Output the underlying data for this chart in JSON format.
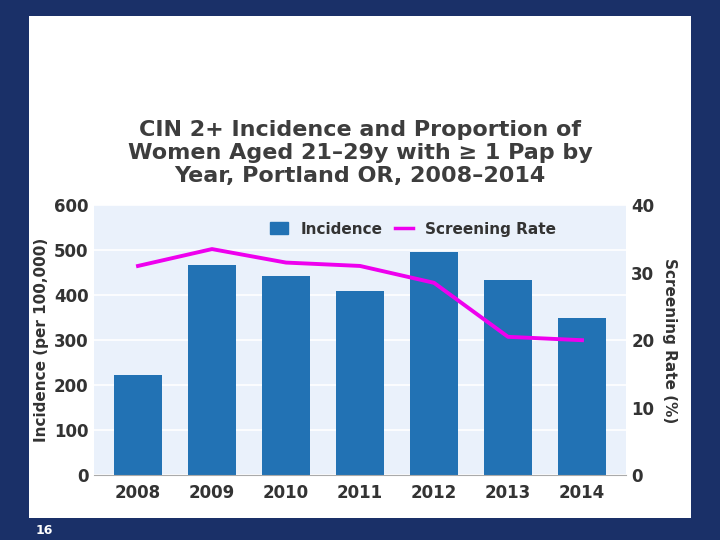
{
  "title": "CIN 2+ Incidence and Proportion of\nWomen Aged 21–29y with ≥ 1 Pap by\nYear, Portland OR, 2008–2014",
  "years": [
    2008,
    2009,
    2010,
    2011,
    2012,
    2013,
    2014
  ],
  "incidence": [
    222,
    468,
    442,
    410,
    497,
    433,
    350
  ],
  "screening_rate": [
    31.0,
    33.5,
    31.5,
    31.0,
    28.5,
    20.5,
    20.0
  ],
  "bar_color": "#2272B4",
  "line_color": "#EE00EE",
  "ylabel_left": "Incidence (per 100,000)",
  "ylabel_right": "Screening Rate (%)",
  "ylim_left": [
    0,
    600
  ],
  "ylim_right": [
    0,
    40
  ],
  "yticks_left": [
    0,
    100,
    200,
    300,
    400,
    500,
    600
  ],
  "yticks_right": [
    0,
    10,
    20,
    30,
    40
  ],
  "legend_incidence": "Incidence",
  "legend_screening": "Screening Rate",
  "plot_bg_color": "#EAF1FB",
  "outer_bg_color": "#FFFFFF",
  "frame_bg_color": "#FFFFFF",
  "border_color": "#1A3068",
  "title_color": "#3D3D3D",
  "title_fontsize": 16,
  "axis_label_fontsize": 11,
  "tick_fontsize": 12,
  "legend_fontsize": 11,
  "page_number": "16"
}
